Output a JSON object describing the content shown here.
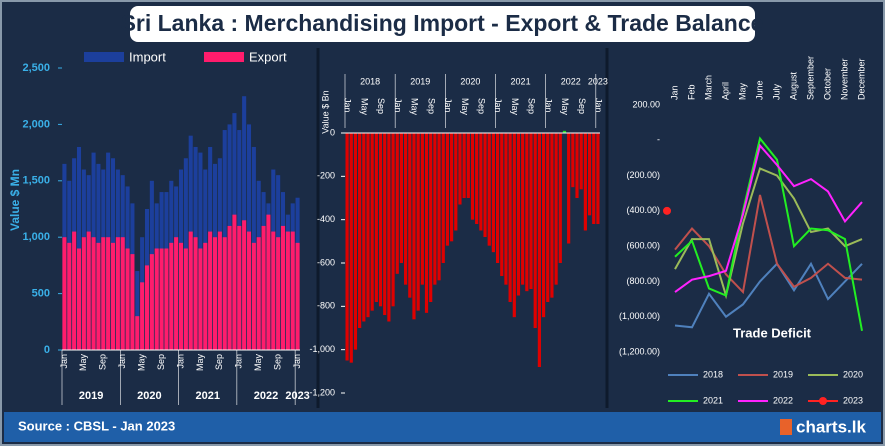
{
  "title": "Sri Lanka : Merchandising Import - Export & Trade Balance",
  "source": "Source : CBSL - Jan 2023",
  "brand": "charts.lk",
  "chart_data": [
    {
      "type": "bar",
      "y_label": "Value $ Mn",
      "categories": [
        "Jan",
        null,
        null,
        null,
        "May",
        null,
        null,
        null,
        "Sep",
        null,
        null,
        null,
        "Jan",
        null,
        null,
        null,
        "May",
        null,
        null,
        null,
        "Sep",
        null,
        null,
        null,
        "Jan",
        null,
        null,
        null,
        "May",
        null,
        null,
        null,
        "Sep",
        null,
        null,
        null,
        "Jan",
        null,
        null,
        null,
        "May",
        null,
        null,
        null,
        "Sep",
        null,
        null,
        null,
        "Jan"
      ],
      "groups": [
        "2019",
        "2020",
        "2021",
        "2022",
        "2023"
      ],
      "series": [
        {
          "name": "Import",
          "color": "#1c3f9c",
          "values": [
            1650,
            1500,
            1700,
            1800,
            1600,
            1550,
            1750,
            1650,
            1600,
            1750,
            1700,
            1600,
            1550,
            1450,
            1300,
            700,
            1000,
            1250,
            1500,
            1300,
            1400,
            1400,
            1500,
            1450,
            1600,
            1700,
            1900,
            1800,
            1750,
            1600,
            1800,
            1650,
            1700,
            1950,
            2000,
            2100,
            1950,
            2250,
            2000,
            1800,
            1500,
            1400,
            1300,
            1600,
            1550,
            1400,
            1200,
            1300,
            1350
          ]
        },
        {
          "name": "Export",
          "color": "#ff1c6c",
          "values": [
            1000,
            950,
            1050,
            900,
            1000,
            1050,
            1000,
            950,
            1000,
            1000,
            950,
            1000,
            1000,
            900,
            850,
            300,
            600,
            750,
            850,
            900,
            900,
            900,
            950,
            1000,
            950,
            900,
            1050,
            1000,
            900,
            950,
            1050,
            1000,
            1050,
            1000,
            1100,
            1200,
            1100,
            1150,
            1050,
            950,
            1000,
            1100,
            1200,
            1050,
            1000,
            1100,
            1050,
            1050,
            950
          ]
        }
      ],
      "ylim": [
        0,
        2500
      ],
      "yticks": [
        0,
        500,
        {
          "value": 1000,
          "label": "1,000"
        },
        {
          "value": 1500,
          "label": "1,500"
        },
        {
          "value": 2000,
          "label": "2,000"
        },
        {
          "value": 2500,
          "label": "2,500"
        }
      ]
    },
    {
      "type": "bar",
      "y_label": "Value $ Bn",
      "categories": [
        "Jan",
        null,
        null,
        null,
        "May",
        null,
        null,
        null,
        "Sep",
        null,
        null,
        null,
        "Jan",
        null,
        null,
        null,
        "May",
        null,
        null,
        null,
        "Sep",
        null,
        null,
        null,
        "Jan",
        null,
        null,
        null,
        "May",
        null,
        null,
        null,
        "Sep",
        null,
        null,
        null,
        "Jan",
        null,
        null,
        null,
        "May",
        null,
        null,
        null,
        "Sep",
        null,
        null,
        null,
        "Jan",
        null,
        null,
        null,
        "May",
        null,
        null,
        null,
        "Sep",
        null,
        null,
        null,
        "Jan"
      ],
      "groups": [
        "2018",
        "2019",
        "2020",
        "2021",
        "2022",
        "2023"
      ],
      "values": [
        -1050,
        -1060,
        -1000,
        -900,
        -870,
        -850,
        -820,
        -780,
        -800,
        -840,
        -870,
        -800,
        -650,
        -600,
        -700,
        -760,
        -860,
        -820,
        -700,
        -830,
        -780,
        -700,
        -680,
        -600,
        -520,
        -500,
        -450,
        -330,
        -300,
        -300,
        -400,
        -420,
        -450,
        -480,
        -520,
        -550,
        -600,
        -660,
        -700,
        -780,
        -850,
        -750,
        -700,
        -730,
        -720,
        -900,
        -1080,
        -850,
        -780,
        -760,
        -700,
        -600,
        10,
        -510,
        -250,
        -300,
        -260,
        -450,
        -380,
        -420,
        -420
      ],
      "color": "#e00000",
      "positive_color": "#22dd22",
      "ylim": [
        -1200,
        0
      ],
      "yticks": [
        0,
        -200,
        -400,
        -600,
        -800,
        {
          "value": -1000,
          "label": "-1,000"
        },
        {
          "value": -1200,
          "label": "-1,200"
        }
      ]
    },
    {
      "type": "line",
      "annotation": "Trade Deficit",
      "categories": [
        "Jan",
        "Feb",
        "March",
        "April",
        "May",
        "June",
        "July",
        "August",
        "September",
        "October",
        "November",
        "December"
      ],
      "series": [
        {
          "name": "2018",
          "color": "#4f81bd",
          "values": [
            -1050,
            -1060,
            -870,
            -1000,
            -930,
            -800,
            -700,
            -850,
            -700,
            -900,
            -800,
            -700
          ]
        },
        {
          "name": "2019",
          "color": "#c0504d",
          "values": [
            -620,
            -500,
            -600,
            -760,
            -860,
            -310,
            -700,
            -830,
            -780,
            -700,
            -780,
            -790
          ]
        },
        {
          "name": "2020",
          "color": "#9bbb59",
          "values": [
            -730,
            -560,
            -560,
            -880,
            -470,
            -160,
            -200,
            -330,
            -520,
            -500,
            -600,
            -560
          ]
        },
        {
          "name": "2021",
          "color": "#22ee22",
          "values": [
            -660,
            -570,
            -840,
            -880,
            -400,
            10,
            -110,
            -600,
            -500,
            -510,
            -560,
            -1080
          ]
        },
        {
          "name": "2022",
          "color": "#ff22ff",
          "values": [
            -860,
            -790,
            -770,
            -740,
            -420,
            -30,
            -140,
            -260,
            -220,
            -290,
            -460,
            -350
          ]
        },
        {
          "name": "2023",
          "color": "#ff2222",
          "marker": true,
          "values": [
            -400,
            null,
            null,
            null,
            null,
            null,
            null,
            null,
            null,
            null,
            null,
            null
          ]
        }
      ],
      "ylim": [
        -1200,
        200
      ],
      "yticks": [
        {
          "value": 200,
          "label": "200.00"
        },
        {
          "value": 0,
          "label": "-"
        },
        {
          "value": -200,
          "label": "(200.00)"
        },
        {
          "value": -400,
          "label": "(400.00)"
        },
        {
          "value": -600,
          "label": "(600.00)"
        },
        {
          "value": -800,
          "label": "(800.00)"
        },
        {
          "value": -1000,
          "label": "(1,000.00)"
        },
        {
          "value": -1200,
          "label": "(1,200.00)"
        }
      ]
    }
  ]
}
